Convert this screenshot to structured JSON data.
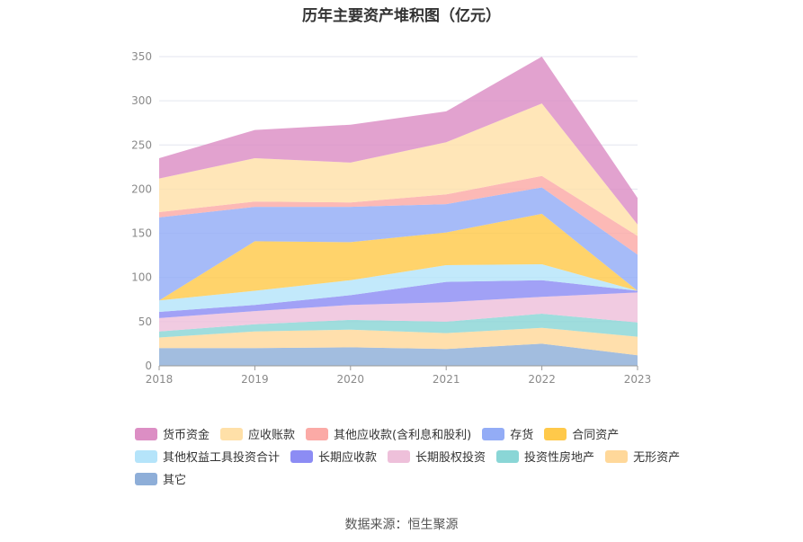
{
  "chart_data": {
    "type": "area",
    "stacked": true,
    "title": "历年主要资产堆积图（亿元）",
    "source": "数据来源：恒生聚源",
    "x": [
      "2018",
      "2019",
      "2020",
      "2021",
      "2022",
      "2023"
    ],
    "ylim": [
      0,
      350
    ],
    "yticks": [
      0,
      50,
      100,
      150,
      200,
      250,
      300,
      350
    ],
    "grid": true,
    "legend_position": "bottom",
    "series": [
      {
        "name": "其它",
        "color": "#8eaed8",
        "values": [
          20,
          20,
          21,
          19,
          25,
          12
        ]
      },
      {
        "name": "无形资产",
        "color": "#ffd89a",
        "values": [
          12,
          19,
          20,
          18,
          18,
          21
        ]
      },
      {
        "name": "投资性房地产",
        "color": "#8ad6d6",
        "values": [
          7,
          8,
          11,
          13,
          16,
          16
        ]
      },
      {
        "name": "长期股权投资",
        "color": "#eec0da",
        "values": [
          15,
          15,
          17,
          22,
          19,
          34
        ]
      },
      {
        "name": "长期应收款",
        "color": "#8c8cf4",
        "values": [
          7,
          7,
          11,
          23,
          19,
          2
        ]
      },
      {
        "name": "其他权益工具投资合计",
        "color": "#b5e4fa",
        "values": [
          13,
          16,
          17,
          19,
          18,
          0
        ]
      },
      {
        "name": "合同资产",
        "color": "#ffc94a",
        "values": [
          0,
          56,
          43,
          37,
          57,
          0
        ]
      },
      {
        "name": "存货",
        "color": "#93acf6",
        "values": [
          94,
          39,
          40,
          32,
          30,
          41
        ]
      },
      {
        "name": "其他应收款(含利息和股利)",
        "color": "#fbaaa6",
        "values": [
          6,
          6,
          5,
          11,
          13,
          21
        ]
      },
      {
        "name": "应收账款",
        "color": "#ffe0a8",
        "values": [
          38,
          49,
          45,
          59,
          82,
          13
        ]
      },
      {
        "name": "货币资金",
        "color": "#dc8ec4",
        "values": [
          23,
          32,
          43,
          35,
          53,
          30
        ]
      }
    ]
  },
  "legend_order": [
    "货币资金",
    "应收账款",
    "其他应收款(含利息和股利)",
    "存货",
    "合同资产",
    "其他权益工具投资合计",
    "长期应收款",
    "长期股权投资",
    "投资性房地产",
    "无形资产",
    "其它"
  ]
}
